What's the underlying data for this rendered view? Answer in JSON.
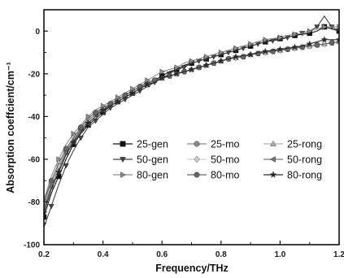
{
  "chart_data": {
    "type": "line",
    "xlabel": "Frequency/THz",
    "ylabel": "Absorption coeffcient/cm⁻¹",
    "xlim": [
      0.2,
      1.2
    ],
    "ylim": [
      -100,
      10
    ],
    "x_ticks": [
      0.2,
      0.4,
      0.6,
      0.8,
      1.0,
      1.2
    ],
    "x_tick_labels": [
      "0.2",
      "0.4",
      "0.6",
      "0.8",
      "1.0",
      "1.2"
    ],
    "y_ticks": [
      0,
      -20,
      -40,
      -60,
      -80,
      -100
    ],
    "y_tick_labels": [
      "0",
      "-20",
      "-40",
      "-60",
      "-80",
      "-100"
    ],
    "grid": false,
    "legend_position": "center-right",
    "x": [
      0.2,
      0.225,
      0.25,
      0.275,
      0.3,
      0.325,
      0.35,
      0.375,
      0.4,
      0.425,
      0.45,
      0.475,
      0.5,
      0.525,
      0.55,
      0.575,
      0.6,
      0.625,
      0.65,
      0.675,
      0.7,
      0.725,
      0.75,
      0.775,
      0.8,
      0.825,
      0.85,
      0.875,
      0.9,
      0.925,
      0.95,
      0.975,
      1.0,
      1.025,
      1.05,
      1.075,
      1.1,
      1.125,
      1.15,
      1.175,
      1.2
    ],
    "series": [
      {
        "name": "25-gen",
        "marker": "square",
        "color": "#111111",
        "values": [
          -87,
          -76,
          -68,
          -60,
          -53,
          -48,
          -44,
          -41,
          -38,
          -35,
          -33,
          -31,
          -29,
          -27,
          -25,
          -23,
          -21,
          -19,
          -18,
          -16,
          -15,
          -14,
          -13,
          -12,
          -11,
          -10,
          -9,
          -8,
          -7,
          -6,
          -5,
          -4,
          -3.5,
          -3,
          -2,
          -1.5,
          -1,
          0,
          2,
          1,
          0
        ]
      },
      {
        "name": "25-mo",
        "marker": "circle",
        "color": "#8a8a8a",
        "values": [
          -82,
          -71,
          -64,
          -56,
          -51,
          -46,
          -42,
          -39,
          -36,
          -34,
          -32,
          -30,
          -28,
          -26,
          -25,
          -23,
          -22,
          -21,
          -20,
          -19,
          -18,
          -17,
          -16,
          -15,
          -14,
          -13,
          -12.5,
          -12,
          -11,
          -10.5,
          -10,
          -9.5,
          -9,
          -8.5,
          -8,
          -7.5,
          -7,
          -6.5,
          -6,
          -5.5,
          -5
        ]
      },
      {
        "name": "25-rong",
        "marker": "triangle-up",
        "color": "#b0b0b0",
        "values": [
          -84,
          -73,
          -65,
          -57,
          -52,
          -47,
          -43,
          -40,
          -37,
          -35,
          -33,
          -31,
          -29,
          -27,
          -25,
          -24,
          -22,
          -21,
          -20,
          -19,
          -18,
          -17,
          -16,
          -15,
          -14,
          -13,
          -12.5,
          -12,
          -11,
          -10.5,
          -10,
          -9.5,
          -9,
          -8.5,
          -8,
          -7.5,
          -7,
          -6.5,
          -6,
          -5.5,
          -5
        ]
      },
      {
        "name": "50-gen",
        "marker": "triangle-down",
        "color": "#444444",
        "values": [
          -92,
          -82,
          -72,
          -63,
          -56,
          -50,
          -45,
          -42,
          -39,
          -36,
          -34,
          -32,
          -30,
          -28,
          -26,
          -24,
          -22,
          -20,
          -18,
          -17,
          -15,
          -14,
          -13,
          -12,
          -11,
          -10,
          -9,
          -8,
          -7,
          -6,
          -5,
          -4.5,
          -4,
          -3,
          -2,
          -1,
          0,
          2,
          7,
          2,
          0
        ]
      },
      {
        "name": "50-mo",
        "marker": "diamond",
        "color": "#cfcfcf",
        "values": [
          -80,
          -70,
          -63,
          -55,
          -50,
          -45,
          -41,
          -38,
          -36,
          -34,
          -32,
          -30,
          -28,
          -26,
          -25,
          -23,
          -22,
          -21,
          -20,
          -19,
          -18,
          -17,
          -16,
          -15,
          -14,
          -13,
          -12.5,
          -12,
          -11,
          -10.5,
          -10,
          -9.5,
          -9,
          -8.5,
          -8,
          -7.5,
          -7,
          -6.5,
          -6,
          -5.5,
          -5
        ]
      },
      {
        "name": "50-rong",
        "marker": "triangle-left",
        "color": "#777777",
        "values": [
          -83,
          -73,
          -65,
          -57,
          -51,
          -46,
          -42,
          -39,
          -37,
          -34,
          -32,
          -30,
          -28,
          -26,
          -25,
          -23,
          -22,
          -21,
          -20,
          -19,
          -18,
          -17,
          -16,
          -15,
          -14,
          -13,
          -12.5,
          -12,
          -11,
          -10.5,
          -10,
          -9.5,
          -9,
          -8.5,
          -8,
          -7.5,
          -7,
          -6.5,
          -6,
          -5.5,
          -5
        ]
      },
      {
        "name": "80-gen",
        "marker": "triangle-right",
        "color": "#8c8c8c",
        "values": [
          -79,
          -68,
          -60,
          -53,
          -48,
          -44,
          -40,
          -37,
          -35,
          -33,
          -31,
          -29,
          -27,
          -25,
          -23,
          -21,
          -19,
          -18,
          -17,
          -15,
          -14,
          -13,
          -12,
          -11,
          -10,
          -9,
          -8,
          -7,
          -6,
          -5,
          -4,
          -3.5,
          -3,
          -2,
          -1.5,
          -1,
          0,
          1,
          2,
          2,
          2
        ]
      },
      {
        "name": "80-mo",
        "marker": "circle",
        "color": "#666666",
        "values": [
          -80,
          -70,
          -62,
          -55,
          -50,
          -45,
          -41,
          -38,
          -36,
          -34,
          -32,
          -30,
          -28,
          -26,
          -24,
          -23,
          -22,
          -21,
          -20,
          -19,
          -18,
          -17,
          -16,
          -15,
          -14,
          -13,
          -12.5,
          -12,
          -11,
          -10.5,
          -10,
          -9.5,
          -9,
          -8.5,
          -8,
          -7.5,
          -7,
          -6.5,
          -6,
          -5.5,
          -5
        ]
      },
      {
        "name": "80-rong",
        "marker": "star",
        "color": "#2a2a2a",
        "values": [
          -85,
          -74,
          -66,
          -58,
          -52,
          -47,
          -43,
          -40,
          -37,
          -35,
          -33,
          -31,
          -29,
          -27,
          -25,
          -24,
          -22,
          -21,
          -20,
          -19,
          -18,
          -17,
          -16,
          -15,
          -14,
          -13,
          -12,
          -11.5,
          -11,
          -10,
          -9.5,
          -9,
          -8.5,
          -8,
          -7.5,
          -7,
          -6,
          -5,
          -4,
          -4,
          -4
        ]
      }
    ]
  }
}
